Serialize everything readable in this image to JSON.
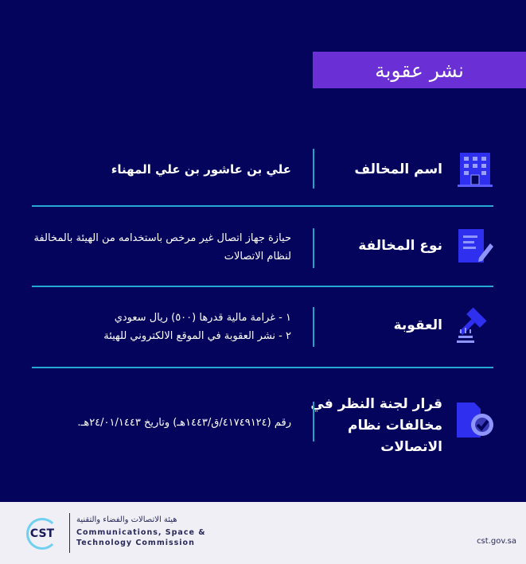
{
  "title": "نشر عقوبة",
  "rows": [
    {
      "label": "اسم المخالف",
      "value": "علي بن عاشور بن علي المهناء",
      "icon": "building-icon"
    },
    {
      "label": "نوع المخالفة",
      "value": "حيازة جهاز اتصال غير مرخص باستخدامه من الهيئة بالمخالفة لنظام الاتصالات",
      "icon": "document-pen-icon"
    },
    {
      "label": "العقوبة",
      "value_lines": [
        "١ - غرامة مالية قدرها (٥٠٠) ريال سعودي",
        "٢ - نشر العقوبة في الموقع الالكتروني للهيئة"
      ],
      "icon": "gavel-icon"
    },
    {
      "label": "قرار لجنة النظر في مخالفات نظام الاتصالات",
      "value": "رقم (٤١٧٤٩١٢٤/ق/١٤٤٣هـ) وتاريخ ٢٤/٠١/١٤٤٣هـ.",
      "icon": "badge-check-icon"
    }
  ],
  "footer": {
    "logo_text": "CST",
    "org_ar": "هيئة الاتصالات والفضاء والتقنية",
    "org_en_1": "Communications, Space &",
    "org_en_2": "Technology Commission",
    "website": "cst.gov.sa"
  },
  "colors": {
    "background": "#04045c",
    "accent": "#6b2fd6",
    "divider": "#25a9d4",
    "icon": "#2f2ff0"
  }
}
